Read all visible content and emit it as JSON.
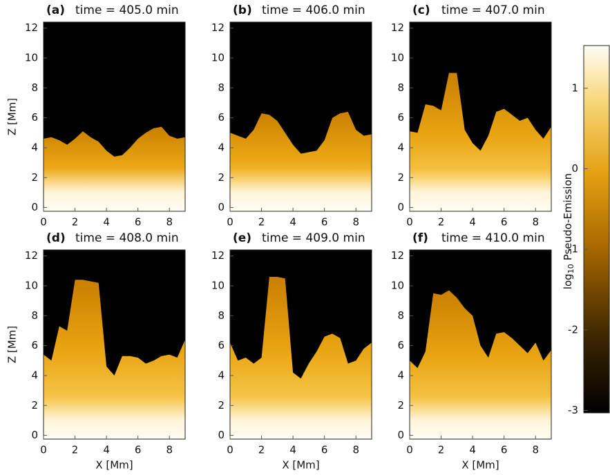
{
  "panels": [
    {
      "label": "(a)",
      "title": "time = 405.0 min"
    },
    {
      "label": "(b)",
      "title": "time = 406.0 min"
    },
    {
      "label": "(c)",
      "title": "time = 407.0 min"
    },
    {
      "label": "(d)",
      "title": "time = 408.0 min"
    },
    {
      "label": "(e)",
      "title": "time = 409.0 min"
    },
    {
      "label": "(f)",
      "title": "time = 410.0 min"
    }
  ],
  "x_axis": {
    "label": "X [Mm]",
    "range": [
      0,
      9
    ],
    "ticks": [
      0,
      2,
      4,
      6,
      8
    ]
  },
  "z_axis": {
    "label": "Z [Mm]",
    "range": [
      -0.25,
      12.4
    ],
    "ticks": [
      0,
      2,
      4,
      6,
      8,
      10,
      12
    ]
  },
  "colorbar": {
    "label_log": "log",
    "label_base": "10",
    "label_text": "Pseudo-Emission",
    "range": [
      -3.03,
      1.53
    ],
    "ticks": [
      -3,
      -2,
      -1,
      0,
      1
    ]
  }
}
